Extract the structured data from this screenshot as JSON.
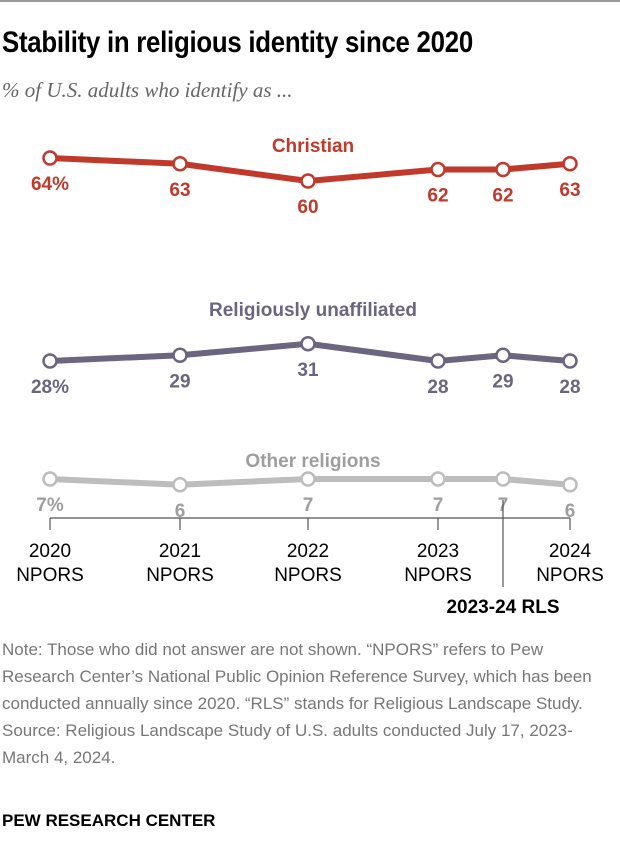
{
  "title": "Stability in religious identity since 2020",
  "subtitle": "% of U.S. adults who identify as ...",
  "chart_data": {
    "type": "line",
    "categories": [
      "2020 NPORS",
      "2021 NPORS",
      "2022 NPORS",
      "2023 NPORS",
      "2023-24 RLS",
      "2024 NPORS"
    ],
    "tick_labels": [
      [
        "2020",
        "NPORS"
      ],
      [
        "2021",
        "NPORS"
      ],
      [
        "2022",
        "NPORS"
      ],
      [
        "2023",
        "NPORS"
      ],
      [
        "2024",
        "NPORS"
      ]
    ],
    "rls_label": "2023-24 RLS",
    "series": [
      {
        "name": "Christian",
        "values": [
          64,
          63,
          60,
          62,
          62,
          63
        ],
        "labels": [
          "64%",
          "63",
          "60",
          "62",
          "62",
          "63"
        ],
        "color": "#c0392b"
      },
      {
        "name": "Religiously unaffiliated",
        "values": [
          28,
          29,
          31,
          28,
          29,
          28
        ],
        "labels": [
          "28%",
          "29",
          "31",
          "28",
          "29",
          "28"
        ],
        "color": "#6b6580"
      },
      {
        "name": "Other religions",
        "values": [
          7,
          6,
          7,
          7,
          7,
          6
        ],
        "labels": [
          "7%",
          "6",
          "7",
          "7",
          "7",
          "6"
        ],
        "color": "#bdbdbd",
        "label_color": "#9e9e9e"
      }
    ],
    "grid": false,
    "legend": "inline labels above each line"
  },
  "note": "Note: Those who did not answer are not shown. “NPORS” refers to Pew Research Center’s National Public Opinion Reference Survey, which has been conducted annually since 2020. “RLS” stands for Religious Landscape Study.",
  "source": "Source: Religious Landscape Study of U.S. adults conducted July 17, 2023-March 4, 2024.",
  "footer": "PEW RESEARCH CENTER"
}
